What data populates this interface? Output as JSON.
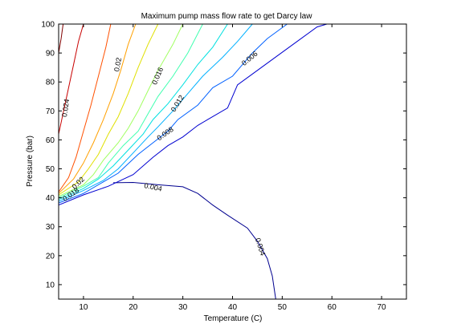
{
  "chart_data": {
    "type": "contour",
    "title": "Maximum pump mass flow rate to get Darcy law",
    "xlabel": "Temperature (C)",
    "ylabel": "Pressure (bar)",
    "xlim": [
      5,
      75
    ],
    "ylim": [
      5,
      100
    ],
    "xticks": [
      10,
      20,
      30,
      40,
      50,
      60,
      70
    ],
    "yticks": [
      10,
      20,
      30,
      40,
      50,
      60,
      70,
      80,
      90,
      100
    ],
    "grid": false,
    "colors": {
      "background": "#ffffff",
      "axes": "#000000",
      "levels": [
        "#00008f",
        "#0000d0",
        "#0060ff",
        "#00b0ff",
        "#00e0e0",
        "#40ffb0",
        "#a0ff60",
        "#e0e000",
        "#ffa000",
        "#ff5000",
        "#c80000",
        "#800000"
      ]
    },
    "contour_lines": [
      {
        "level": 0.004,
        "points": [
          [
            16,
            45.2
          ],
          [
            20,
            45.3
          ],
          [
            25,
            44.5
          ],
          [
            30,
            43.8
          ],
          [
            33,
            41.5
          ],
          [
            36,
            37.5
          ],
          [
            39,
            34
          ],
          [
            43,
            29.5
          ],
          [
            45,
            25
          ],
          [
            47,
            19
          ],
          [
            48,
            13
          ],
          [
            48.7,
            5
          ]
        ]
      },
      {
        "level": 0.006,
        "points": [
          [
            5,
            37.5
          ],
          [
            10,
            41
          ],
          [
            15,
            44
          ],
          [
            20,
            48
          ],
          [
            24,
            54
          ],
          [
            27,
            58
          ],
          [
            30,
            61
          ],
          [
            33,
            65
          ],
          [
            35,
            67
          ],
          [
            39,
            71
          ],
          [
            41,
            79
          ],
          [
            45,
            84
          ],
          [
            49,
            89
          ],
          [
            53,
            94
          ],
          [
            57,
            99
          ],
          [
            59,
            100
          ]
        ]
      },
      {
        "level": 0.008,
        "points": [
          [
            5,
            38.2
          ],
          [
            10,
            41.5
          ],
          [
            14,
            45.5
          ],
          [
            17,
            48.5
          ],
          [
            21,
            55
          ],
          [
            24,
            59
          ],
          [
            27,
            63
          ],
          [
            29,
            67
          ],
          [
            33,
            72
          ],
          [
            36,
            78
          ],
          [
            40,
            82
          ],
          [
            44,
            90
          ],
          [
            47,
            95
          ],
          [
            51,
            100
          ]
        ]
      },
      {
        "level": 0.01,
        "points": [
          [
            5,
            38.8
          ],
          [
            10,
            42.5
          ],
          [
            14,
            46
          ],
          [
            17,
            50
          ],
          [
            20,
            55.5
          ],
          [
            23,
            61
          ],
          [
            25,
            64.5
          ],
          [
            28,
            70
          ],
          [
            31,
            76
          ],
          [
            34,
            82
          ],
          [
            38,
            88.5
          ],
          [
            41,
            94
          ],
          [
            44,
            100
          ]
        ]
      },
      {
        "level": 0.012,
        "points": [
          [
            5,
            39.4
          ],
          [
            10,
            43.2
          ],
          [
            13,
            46.5
          ],
          [
            16,
            51
          ],
          [
            19,
            56.5
          ],
          [
            22,
            62
          ],
          [
            24,
            67
          ],
          [
            27,
            72.5
          ],
          [
            30,
            79
          ],
          [
            33,
            86
          ],
          [
            36,
            92
          ],
          [
            39,
            100
          ]
        ]
      },
      {
        "level": 0.014,
        "points": [
          [
            5,
            40
          ],
          [
            10,
            44
          ],
          [
            13,
            47
          ],
          [
            15,
            52
          ],
          [
            18,
            58
          ],
          [
            21,
            63
          ],
          [
            23,
            69
          ],
          [
            25,
            75
          ],
          [
            28,
            82
          ],
          [
            31,
            90
          ],
          [
            34,
            100
          ]
        ]
      },
      {
        "level": 0.016,
        "points": [
          [
            5,
            40.5
          ],
          [
            10,
            44.5
          ],
          [
            12,
            48
          ],
          [
            14,
            53
          ],
          [
            17,
            59
          ],
          [
            19,
            64
          ],
          [
            21,
            70
          ],
          [
            23,
            77
          ],
          [
            25,
            84
          ],
          [
            28,
            93
          ],
          [
            30,
            100
          ]
        ]
      },
      {
        "level": 0.018,
        "points": [
          [
            5,
            41
          ],
          [
            9,
            45.5
          ],
          [
            11,
            50
          ],
          [
            13,
            55
          ],
          [
            15,
            62
          ],
          [
            17,
            68
          ],
          [
            19,
            76
          ],
          [
            21,
            85
          ],
          [
            23,
            93
          ],
          [
            25,
            100
          ]
        ]
      },
      {
        "level": 0.02,
        "points": [
          [
            5,
            41.5
          ],
          [
            8,
            46.5
          ],
          [
            10,
            52
          ],
          [
            12,
            59
          ],
          [
            14,
            67
          ],
          [
            16,
            76
          ],
          [
            17.5,
            84
          ],
          [
            19,
            93
          ],
          [
            20.5,
            100
          ]
        ]
      },
      {
        "level": 0.022,
        "points": [
          [
            5,
            42
          ],
          [
            7,
            47
          ],
          [
            8.5,
            54
          ],
          [
            10,
            63
          ],
          [
            11.5,
            72
          ],
          [
            13,
            82
          ],
          [
            14.5,
            92
          ],
          [
            15.5,
            100
          ]
        ]
      },
      {
        "level": 0.024,
        "points": [
          [
            5,
            62
          ],
          [
            6,
            70
          ],
          [
            7,
            78
          ],
          [
            8,
            86
          ],
          [
            9,
            94
          ],
          [
            10,
            100
          ]
        ]
      },
      {
        "level": 0.026,
        "points": [
          [
            5,
            90
          ],
          [
            5.5,
            95
          ],
          [
            5.9,
            100
          ]
        ]
      }
    ],
    "labels": [
      {
        "text": "0.004",
        "x": 24,
        "y": 43.5,
        "angle": 12
      },
      {
        "text": "0.004",
        "x": 45.5,
        "y": 23,
        "angle": 72
      },
      {
        "text": "0.006",
        "x": 43.5,
        "y": 88,
        "angle": -40
      },
      {
        "text": "0.008",
        "x": 26.5,
        "y": 62,
        "angle": -35
      },
      {
        "text": "0.012",
        "x": 29,
        "y": 72.5,
        "angle": -58
      },
      {
        "text": "0.016",
        "x": 25,
        "y": 82,
        "angle": -67
      },
      {
        "text": "0.02",
        "x": 17,
        "y": 86,
        "angle": -80
      },
      {
        "text": "0.024",
        "x": 6.5,
        "y": 71,
        "angle": -82
      },
      {
        "text": "0.02",
        "x": 9,
        "y": 45,
        "angle": -45
      },
      {
        "text": "0.018",
        "x": 7.5,
        "y": 41,
        "angle": -35
      }
    ]
  }
}
